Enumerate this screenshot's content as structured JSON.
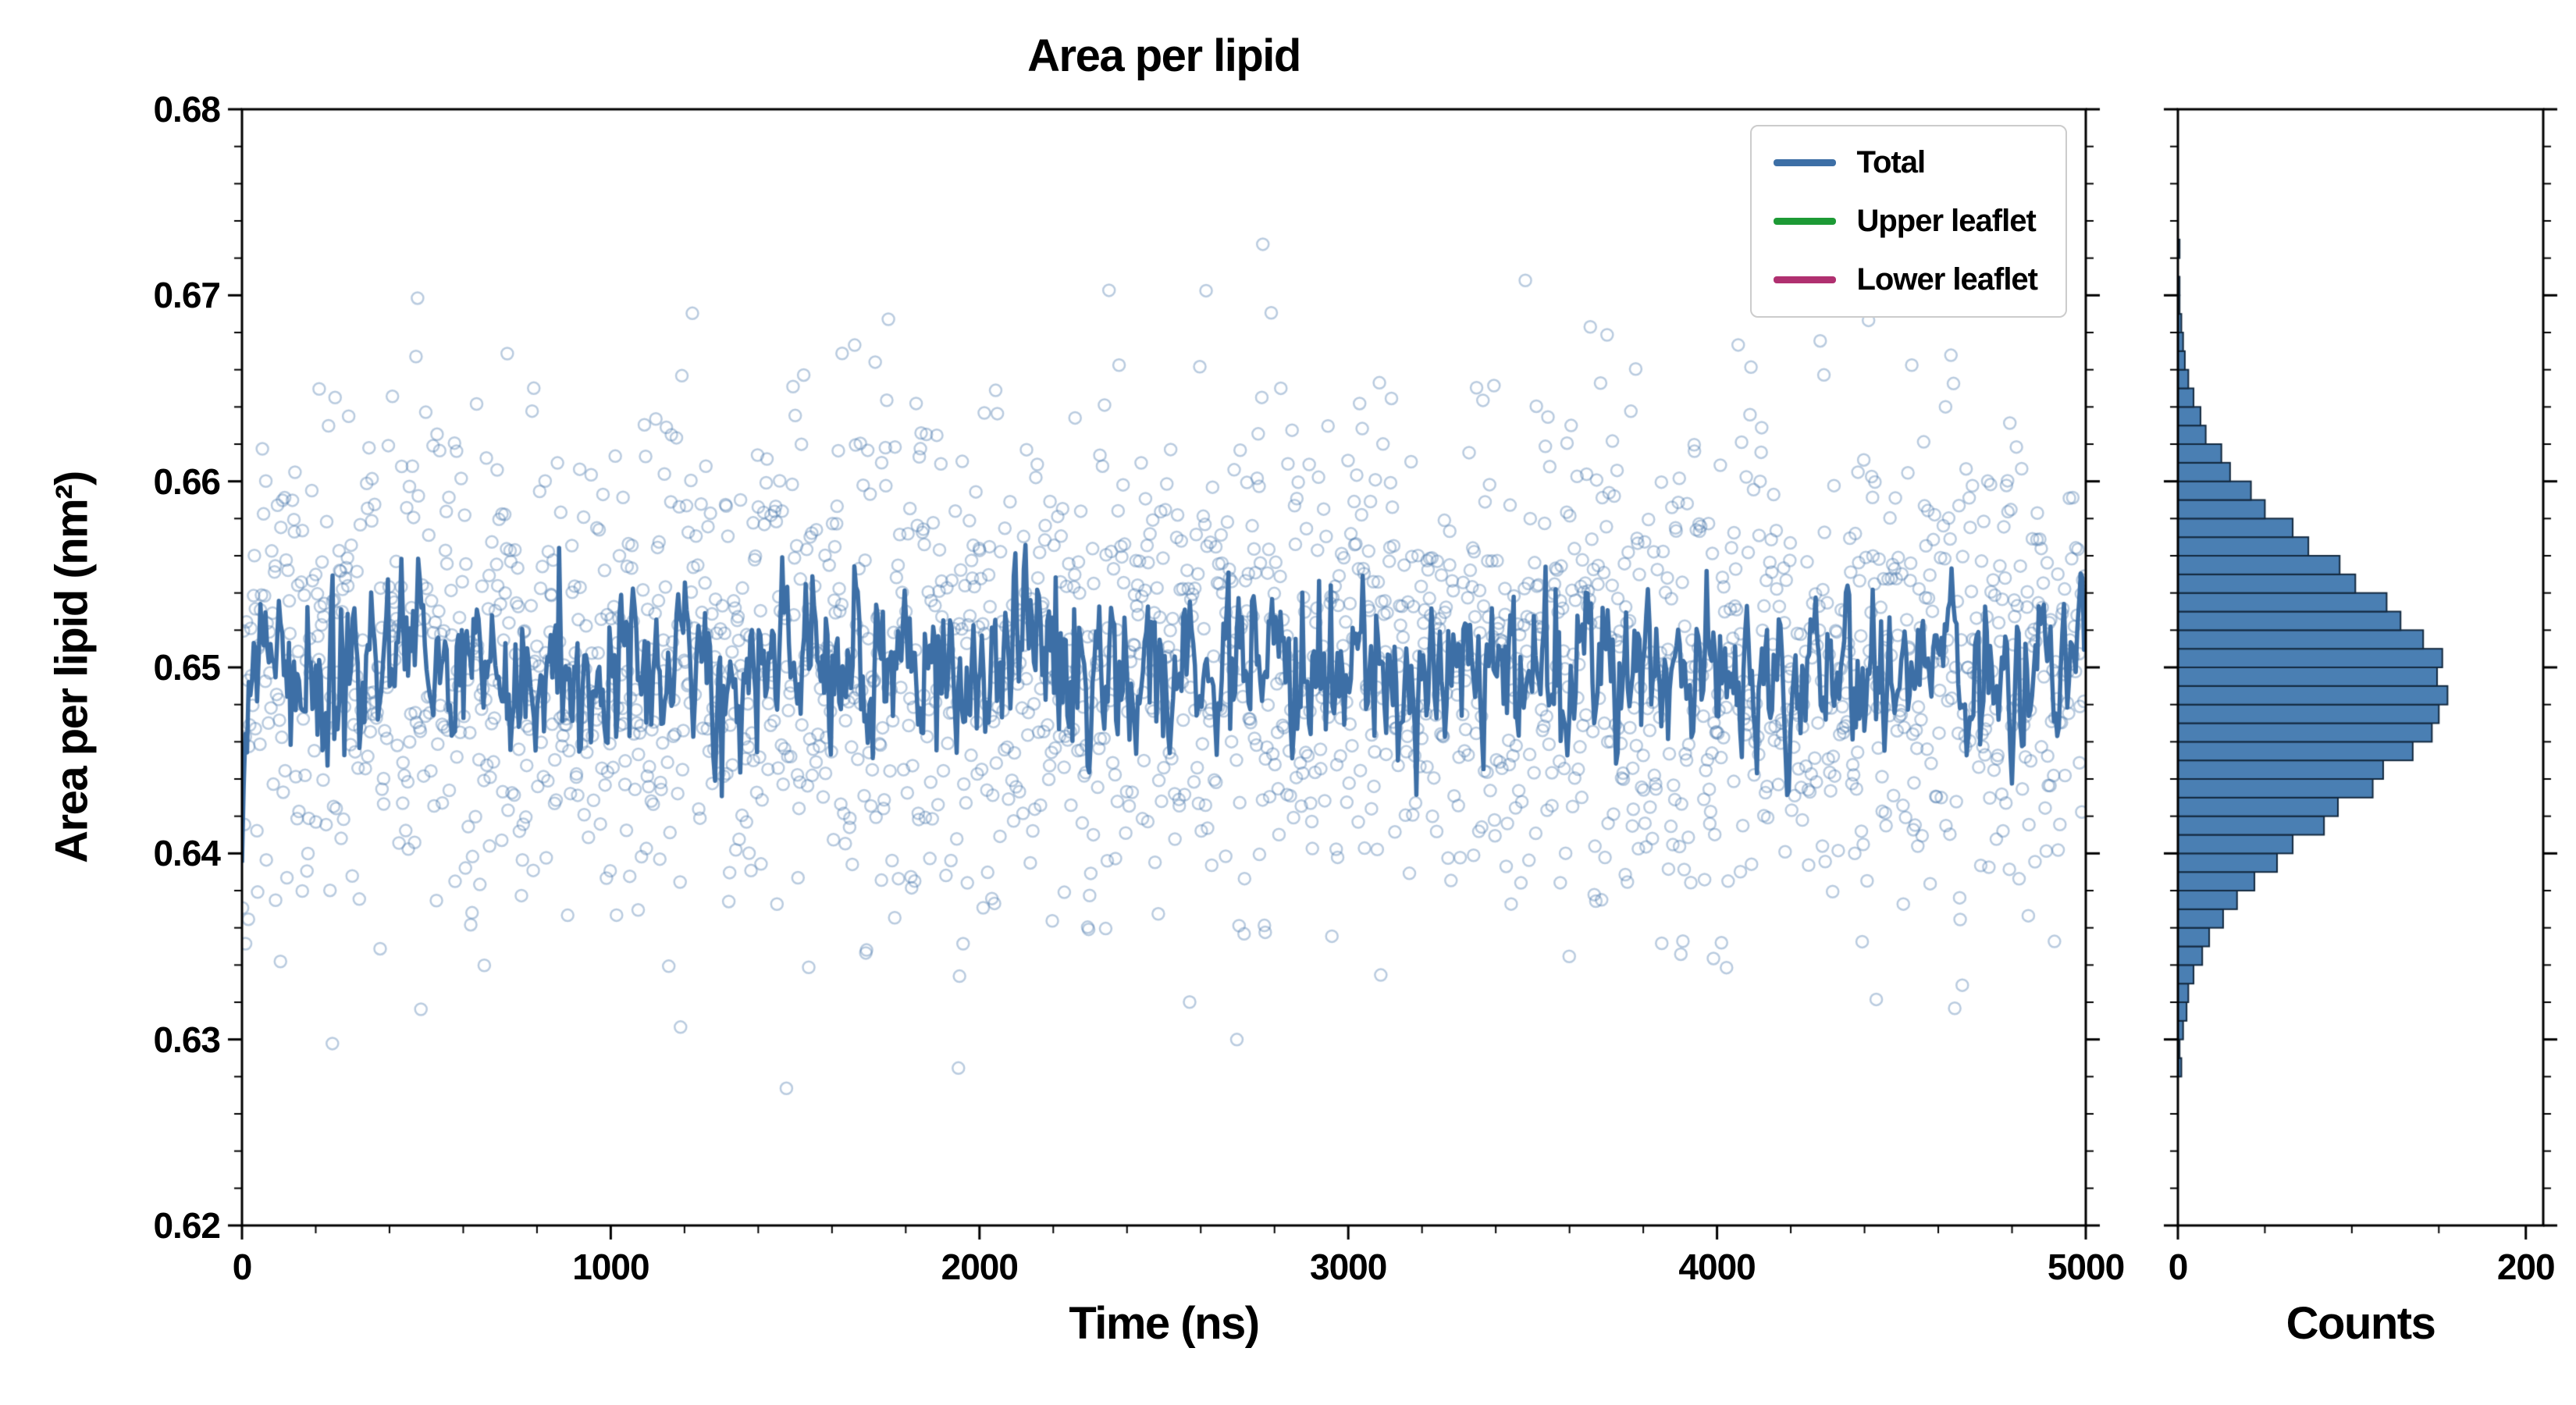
{
  "chart_data": {
    "type": "scatter+line with marginal histogram",
    "title": "Area per lipid",
    "main": {
      "xlabel": "Time (ns)",
      "ylabel": "Area per lipid (nm²)",
      "xlim": [
        0,
        5000
      ],
      "ylim": [
        0.62,
        0.68
      ],
      "xticks": [
        0,
        1000,
        2000,
        3000,
        4000,
        5000
      ],
      "yticks": [
        0.62,
        0.63,
        0.64,
        0.65,
        0.66,
        0.67,
        0.68
      ],
      "x_minor_step": 200,
      "y_minor_step": 0.002
    },
    "series": [
      {
        "name": "Total",
        "color": "#3d6fa6",
        "role": "plotted",
        "marker": "open-circle",
        "marker_color": "rgba(70,118,170,0.38)",
        "scatter": {
          "n": 2200,
          "mean": 0.65,
          "std": 0.0068,
          "seed": 42
        },
        "line": {
          "n": 1100,
          "mean": 0.6498,
          "sigma": 0.0021,
          "phi": 0.45,
          "start": 0.6395,
          "seed": 1337,
          "width": 5.5
        }
      },
      {
        "name": "Upper leaflet",
        "color": "#1d9a35",
        "role": "legend-only"
      },
      {
        "name": "Lower leaflet",
        "color": "#b03070",
        "role": "legend-only"
      }
    ],
    "histogram": {
      "xlabel": "Counts",
      "xlim": [
        0,
        210
      ],
      "xticks": [
        0,
        200
      ],
      "x_minor_ticks": [
        50,
        100,
        150
      ],
      "bar_color": "#4a7fb3",
      "bar_edge": "#13293f",
      "bin_start": 0.628,
      "bin_step": 0.001,
      "counts": [
        2,
        1,
        3,
        5,
        6,
        9,
        14,
        18,
        26,
        34,
        44,
        57,
        66,
        84,
        92,
        112,
        118,
        135,
        146,
        150,
        155,
        149,
        152,
        141,
        128,
        120,
        102,
        93,
        75,
        66,
        50,
        42,
        30,
        25,
        16,
        13,
        9,
        6,
        4,
        3,
        2,
        1,
        1,
        0,
        1
      ]
    },
    "style": {
      "spine_color": "#000000",
      "background": "#ffffff"
    }
  }
}
